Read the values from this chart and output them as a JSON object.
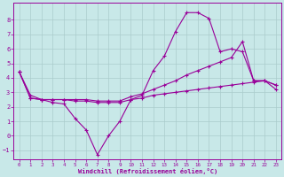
{
  "xlabel": "Windchill (Refroidissement éolien,°C)",
  "bg_color": "#c8e8e8",
  "line_color": "#990099",
  "grid_color": "#aacccc",
  "xlim": [
    -0.5,
    23.5
  ],
  "ylim": [
    -1.6,
    9.2
  ],
  "xticks": [
    0,
    1,
    2,
    3,
    4,
    5,
    6,
    7,
    8,
    9,
    10,
    11,
    12,
    13,
    14,
    15,
    16,
    17,
    18,
    19,
    20,
    21,
    22,
    23
  ],
  "yticks": [
    -1,
    0,
    1,
    2,
    3,
    4,
    5,
    6,
    7,
    8
  ],
  "curve1_x": [
    0,
    1,
    2,
    3,
    4,
    5,
    6,
    7,
    8,
    9,
    10,
    11,
    12,
    13,
    14,
    15,
    16,
    17,
    18,
    19,
    20,
    21,
    22,
    23
  ],
  "curve1_y": [
    4.4,
    2.8,
    2.5,
    2.3,
    2.2,
    1.2,
    0.4,
    -1.3,
    0.0,
    1.0,
    2.5,
    2.8,
    4.5,
    5.5,
    7.2,
    8.5,
    8.5,
    8.1,
    5.8,
    6.0,
    5.8,
    3.8,
    3.8,
    3.5
  ],
  "curve2_x": [
    0,
    1,
    2,
    3,
    4,
    5,
    6,
    7,
    8,
    9,
    10,
    11,
    12,
    13,
    14,
    15,
    16,
    17,
    18,
    19,
    20,
    21,
    22,
    23
  ],
  "curve2_y": [
    4.4,
    2.6,
    2.5,
    2.5,
    2.5,
    2.5,
    2.5,
    2.4,
    2.4,
    2.4,
    2.7,
    2.9,
    3.2,
    3.5,
    3.8,
    4.2,
    4.5,
    4.8,
    5.1,
    5.4,
    6.5,
    3.8,
    3.8,
    3.5
  ],
  "curve3_x": [
    0,
    1,
    2,
    3,
    4,
    5,
    6,
    7,
    8,
    9,
    10,
    11,
    12,
    13,
    14,
    15,
    16,
    17,
    18,
    19,
    20,
    21,
    22,
    23
  ],
  "curve3_y": [
    4.4,
    2.6,
    2.5,
    2.5,
    2.5,
    2.4,
    2.4,
    2.3,
    2.3,
    2.3,
    2.5,
    2.6,
    2.8,
    2.9,
    3.0,
    3.1,
    3.2,
    3.3,
    3.4,
    3.5,
    3.6,
    3.7,
    3.8,
    3.2
  ]
}
